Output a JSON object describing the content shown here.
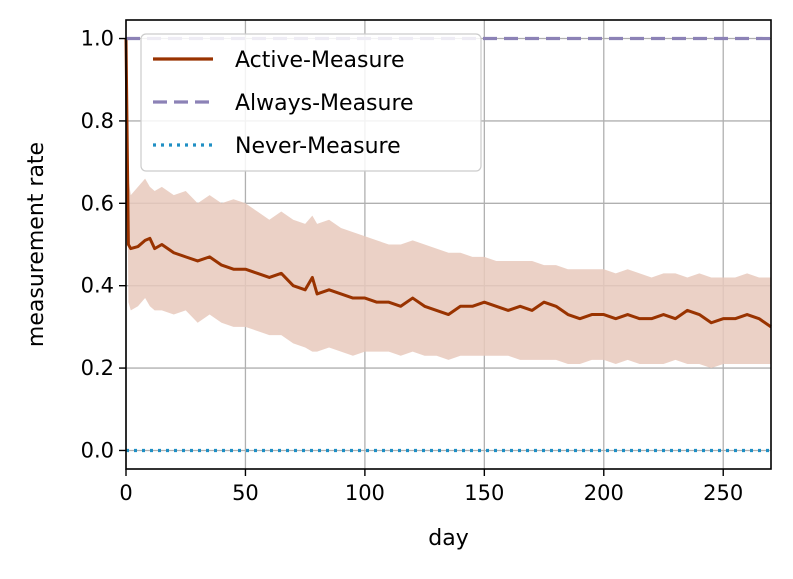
{
  "chart_data": {
    "type": "line",
    "title": "",
    "xlabel": "day",
    "ylabel": "measurement rate",
    "xlim": [
      0,
      270
    ],
    "ylim": [
      -0.045,
      1.045
    ],
    "x_ticks": [
      0,
      50,
      100,
      150,
      200,
      250
    ],
    "x_tick_labels": [
      "0",
      "50",
      "100",
      "150",
      "200",
      "250"
    ],
    "y_ticks": [
      0.0,
      0.2,
      0.4,
      0.6,
      0.8,
      1.0
    ],
    "y_tick_labels": [
      "0.0",
      "0.2",
      "0.4",
      "0.6",
      "0.8",
      "1.0"
    ],
    "grid": true,
    "legend_position": "top-left",
    "series": [
      {
        "name": "Active-Measure",
        "style": "solid",
        "color": "#993300",
        "band_color": "#e8c9bc",
        "x": [
          0,
          1,
          2,
          5,
          8,
          10,
          12,
          15,
          20,
          25,
          30,
          35,
          40,
          45,
          50,
          55,
          60,
          65,
          70,
          75,
          78,
          80,
          85,
          90,
          95,
          100,
          105,
          110,
          115,
          120,
          125,
          130,
          135,
          140,
          145,
          150,
          155,
          160,
          165,
          170,
          175,
          180,
          185,
          190,
          195,
          200,
          205,
          210,
          215,
          220,
          225,
          230,
          235,
          240,
          245,
          250,
          255,
          260,
          265,
          270
        ],
        "y": [
          1.0,
          0.5,
          0.49,
          0.495,
          0.51,
          0.515,
          0.49,
          0.5,
          0.48,
          0.47,
          0.46,
          0.47,
          0.45,
          0.44,
          0.44,
          0.43,
          0.42,
          0.43,
          0.4,
          0.39,
          0.42,
          0.38,
          0.39,
          0.38,
          0.37,
          0.37,
          0.36,
          0.36,
          0.35,
          0.37,
          0.35,
          0.34,
          0.33,
          0.35,
          0.35,
          0.36,
          0.35,
          0.34,
          0.35,
          0.34,
          0.36,
          0.35,
          0.33,
          0.32,
          0.33,
          0.33,
          0.32,
          0.33,
          0.32,
          0.32,
          0.33,
          0.32,
          0.34,
          0.33,
          0.31,
          0.32,
          0.32,
          0.33,
          0.32,
          0.3
        ],
        "upper": [
          1.0,
          0.66,
          0.62,
          0.64,
          0.66,
          0.64,
          0.63,
          0.64,
          0.62,
          0.63,
          0.6,
          0.62,
          0.6,
          0.61,
          0.6,
          0.58,
          0.56,
          0.58,
          0.56,
          0.55,
          0.57,
          0.55,
          0.56,
          0.54,
          0.53,
          0.52,
          0.51,
          0.5,
          0.5,
          0.51,
          0.5,
          0.49,
          0.48,
          0.48,
          0.47,
          0.47,
          0.46,
          0.46,
          0.46,
          0.46,
          0.45,
          0.45,
          0.44,
          0.44,
          0.44,
          0.44,
          0.43,
          0.44,
          0.43,
          0.42,
          0.43,
          0.43,
          0.42,
          0.43,
          0.42,
          0.42,
          0.42,
          0.43,
          0.42,
          0.42
        ],
        "lower": [
          1.0,
          0.36,
          0.34,
          0.35,
          0.37,
          0.35,
          0.34,
          0.34,
          0.33,
          0.34,
          0.31,
          0.33,
          0.31,
          0.3,
          0.3,
          0.29,
          0.28,
          0.28,
          0.26,
          0.25,
          0.24,
          0.24,
          0.25,
          0.24,
          0.23,
          0.24,
          0.24,
          0.24,
          0.23,
          0.24,
          0.23,
          0.23,
          0.22,
          0.23,
          0.23,
          0.23,
          0.23,
          0.23,
          0.22,
          0.22,
          0.22,
          0.22,
          0.21,
          0.21,
          0.22,
          0.22,
          0.21,
          0.22,
          0.21,
          0.21,
          0.21,
          0.22,
          0.21,
          0.21,
          0.2,
          0.21,
          0.21,
          0.21,
          0.21,
          0.21
        ]
      },
      {
        "name": "Always-Measure",
        "style": "dashed",
        "color": "#8c82b6",
        "x": [
          0,
          270
        ],
        "y": [
          1.0,
          1.0
        ]
      },
      {
        "name": "Never-Measure",
        "style": "dotted",
        "color": "#1f8fc4",
        "x": [
          0,
          270
        ],
        "y": [
          0.0,
          0.0
        ]
      }
    ]
  }
}
